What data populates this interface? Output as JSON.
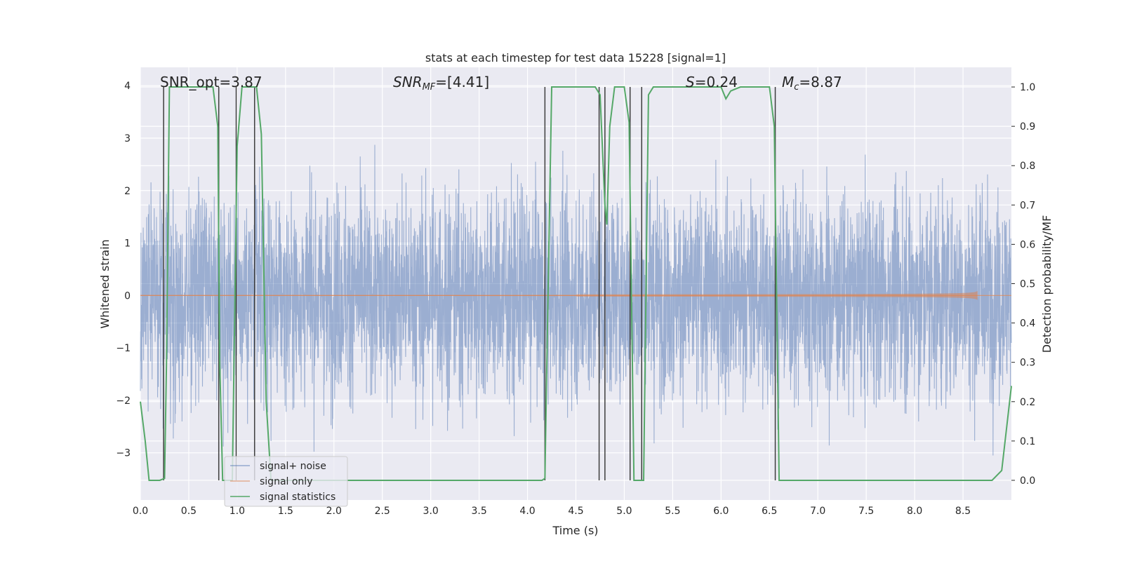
{
  "chart_data": {
    "type": "line",
    "title": "stats at each timestep for test data 15228 [signal=1]",
    "xlabel": "Time (s)",
    "ylabel_left": "Whitened strain",
    "ylabel_right": "Detection probability/MF",
    "xlim": [
      0,
      9.0
    ],
    "ylim_left": [
      -3.9,
      4.35
    ],
    "ylim_right": [
      -0.05,
      1.05
    ],
    "x_ticks": [
      "0.0",
      "0.5",
      "1.0",
      "1.5",
      "2.0",
      "2.5",
      "3.0",
      "3.5",
      "4.0",
      "4.5",
      "5.0",
      "5.5",
      "6.0",
      "6.5",
      "7.0",
      "7.5",
      "8.0",
      "8.5"
    ],
    "y_left_ticks": [
      "4",
      "3",
      "2",
      "1",
      "0",
      "−1",
      "−2",
      "−3"
    ],
    "y_right_ticks": [
      "1.0",
      "0.9",
      "0.8",
      "0.7",
      "0.6",
      "0.5",
      "0.4",
      "0.3",
      "0.2",
      "0.1",
      "0.0"
    ],
    "annotations": {
      "snr_opt": "SNR_opt=3.87",
      "snr_mf_main": "SNR",
      "snr_mf_sub": "MF",
      "snr_mf_rest": "=[4.41]",
      "s_main": "S",
      "s_rest": "=0.24",
      "mc_main": "M",
      "mc_sub": "c",
      "mc_rest": "=8.87"
    },
    "legend": [
      "signal+ noise",
      "signal only",
      "signal statistics"
    ],
    "series": [
      {
        "name": "signal+ noise",
        "color": "#4c72b0",
        "description": "whitened noisy strain, approx. in [-3.6, 3.6]"
      },
      {
        "name": "signal only",
        "color": "#dd8452",
        "description": "chirp signal growing toward merger at t~8.65 s"
      },
      {
        "name": "signal statistics",
        "color": "#55a868",
        "x": [
          0.0,
          0.05,
          0.09,
          0.2,
          0.25,
          0.27,
          0.3,
          0.75,
          0.8,
          0.82,
          0.85,
          0.95,
          1.0,
          1.05,
          1.07,
          1.15,
          1.2,
          1.25,
          1.3,
          1.35,
          2.9,
          3.1,
          4.15,
          4.18,
          4.2,
          4.25,
          4.45,
          4.7,
          4.75,
          4.8,
          4.82,
          4.85,
          4.9,
          5.0,
          5.05,
          5.1,
          5.15,
          5.2,
          5.25,
          5.3,
          5.35,
          5.5,
          6.0,
          6.05,
          6.1,
          6.2,
          6.5,
          6.55,
          6.6,
          6.65,
          7.0,
          7.5,
          8.0,
          8.5,
          8.8,
          8.9,
          9.0
        ],
        "y": [
          0.2,
          0.1,
          0.0,
          0.0,
          0.005,
          0.3,
          1.0,
          1.0,
          0.9,
          0.3,
          0.0,
          0.0,
          0.85,
          1.0,
          1.0,
          1.0,
          1.0,
          0.88,
          0.2,
          0.0,
          0.0,
          0.0,
          0.0,
          0.005,
          0.3,
          1.0,
          1.0,
          1.0,
          0.98,
          0.7,
          0.65,
          0.9,
          1.0,
          1.0,
          0.91,
          0.0,
          0.0,
          0.0,
          0.98,
          1.0,
          1.0,
          1.0,
          1.0,
          0.97,
          0.99,
          1.0,
          1.0,
          0.9,
          0.0,
          0.0,
          0.0,
          0.0,
          0.0,
          0.0,
          0.0,
          0.025,
          0.24
        ]
      }
    ],
    "vertical_lines_x": [
      0.24,
      0.81,
      0.99,
      1.18,
      4.18,
      4.74,
      4.8,
      5.06,
      5.18,
      6.56
    ]
  }
}
